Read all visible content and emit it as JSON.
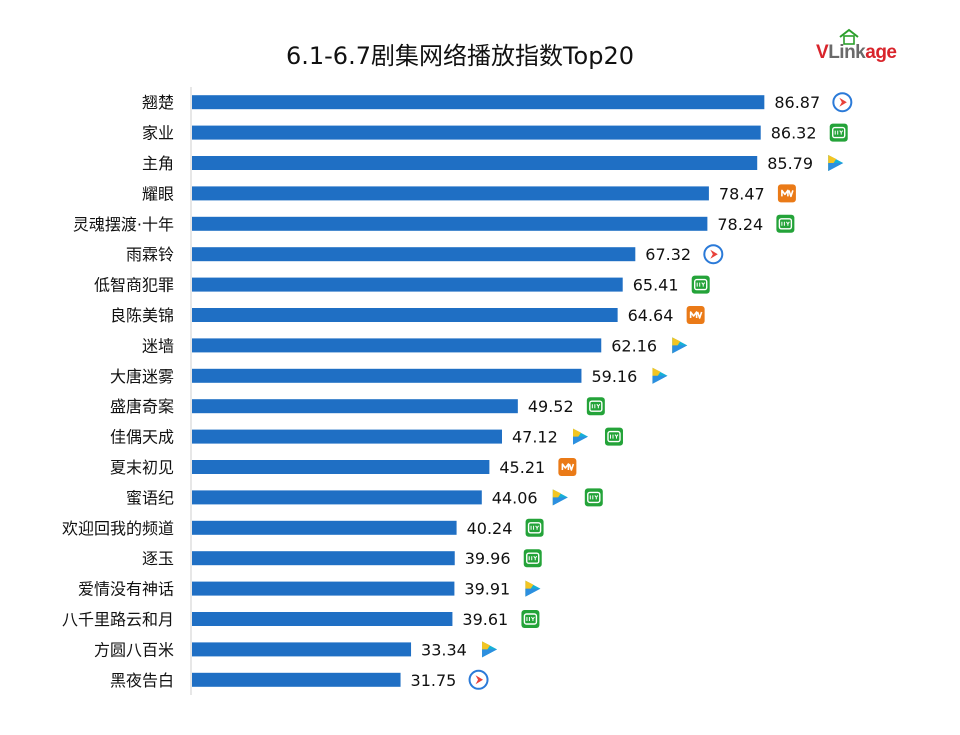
{
  "brand": {
    "logo_text": "VLinkage"
  },
  "colors": {
    "bar": "#1f6fc4",
    "axis": "#cfcfcf",
    "tencent": "#2b7ad8",
    "iqiyi": "#24a339",
    "mango": "#ea7a17",
    "youku_teal": "#16b0d6",
    "youku_yellow": "#f3c522"
  },
  "chart_data": {
    "type": "bar",
    "orientation": "horizontal",
    "title": "6.1-6.7剧集网络播放指数Top20",
    "xlabel": "",
    "ylabel": "",
    "xlim": [
      0,
      100
    ],
    "grid": false,
    "legend": "none",
    "categories": [
      "翘楚",
      "家业",
      "主角",
      "耀眼",
      "灵魂摆渡·十年",
      "雨霖铃",
      "低智商犯罪",
      "良陈美锦",
      "迷墙",
      "大唐迷雾",
      "盛唐奇案",
      "佳偶天成",
      "夏末初见",
      "蜜语纪",
      "欢迎回我的频道",
      "逐玉",
      "爱情没有神话",
      "八千里路云和月",
      "方圆八百米",
      "黑夜告白"
    ],
    "values": [
      86.87,
      86.32,
      85.79,
      78.47,
      78.24,
      67.32,
      65.41,
      64.64,
      62.16,
      59.16,
      49.52,
      47.12,
      45.21,
      44.06,
      40.24,
      39.96,
      39.91,
      39.61,
      33.34,
      31.75
    ],
    "value_labels": [
      "86.87",
      "86.32",
      "85.79",
      "78.47",
      "78.24",
      "67.32",
      "65.41",
      "64.64",
      "62.16",
      "59.16",
      "49.52",
      "47.12",
      "45.21",
      "44.06",
      "40.24",
      "39.96",
      "39.91",
      "39.61",
      "33.34",
      "31.75"
    ],
    "platforms": [
      [
        "tencent-video"
      ],
      [
        "iqiyi"
      ],
      [
        "youku"
      ],
      [
        "mango-tv"
      ],
      [
        "iqiyi"
      ],
      [
        "tencent-video"
      ],
      [
        "iqiyi"
      ],
      [
        "mango-tv"
      ],
      [
        "youku"
      ],
      [
        "youku"
      ],
      [
        "iqiyi"
      ],
      [
        "youku",
        "iqiyi"
      ],
      [
        "mango-tv"
      ],
      [
        "youku",
        "iqiyi"
      ],
      [
        "iqiyi"
      ],
      [
        "iqiyi"
      ],
      [
        "youku"
      ],
      [
        "iqiyi"
      ],
      [
        "youku"
      ],
      [
        "tencent-video"
      ]
    ]
  }
}
